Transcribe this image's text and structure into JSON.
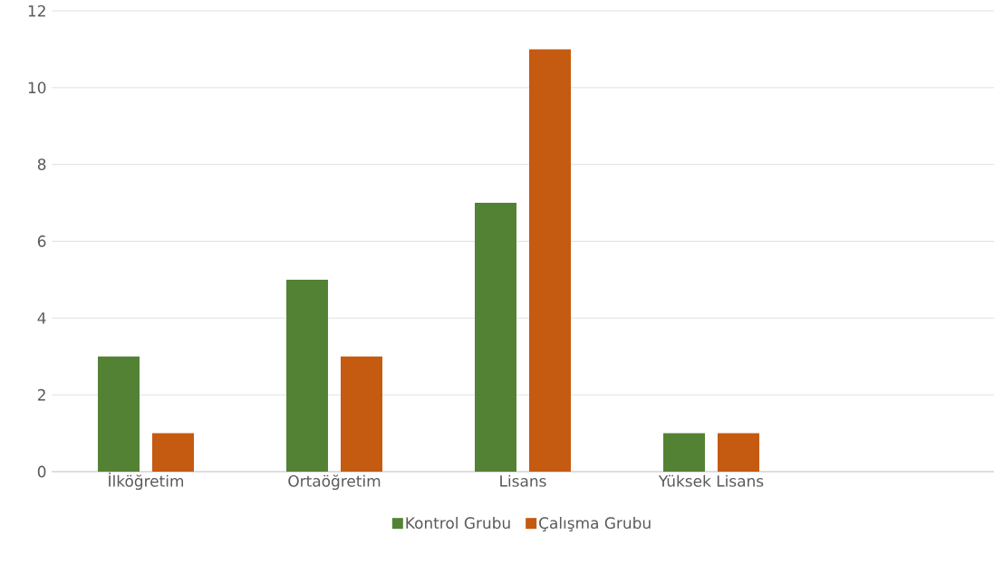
{
  "chart_data": {
    "type": "bar",
    "categories": [
      "İlköğretim",
      "Ortaöğretim",
      "Lisans",
      "Yüksek Lisans",
      null
    ],
    "series": [
      {
        "name": "Kontrol Grubu",
        "color": "#548235",
        "values": [
          3,
          5,
          7,
          1,
          null
        ]
      },
      {
        "name": "Çalışma Grubu",
        "color": "#c55a11",
        "values": [
          1,
          3,
          11,
          1,
          null
        ]
      }
    ],
    "ylim": [
      0,
      12
    ],
    "yticks": [
      0,
      2,
      4,
      6,
      8,
      10,
      12
    ],
    "grid": "y",
    "legend": "bottom"
  }
}
